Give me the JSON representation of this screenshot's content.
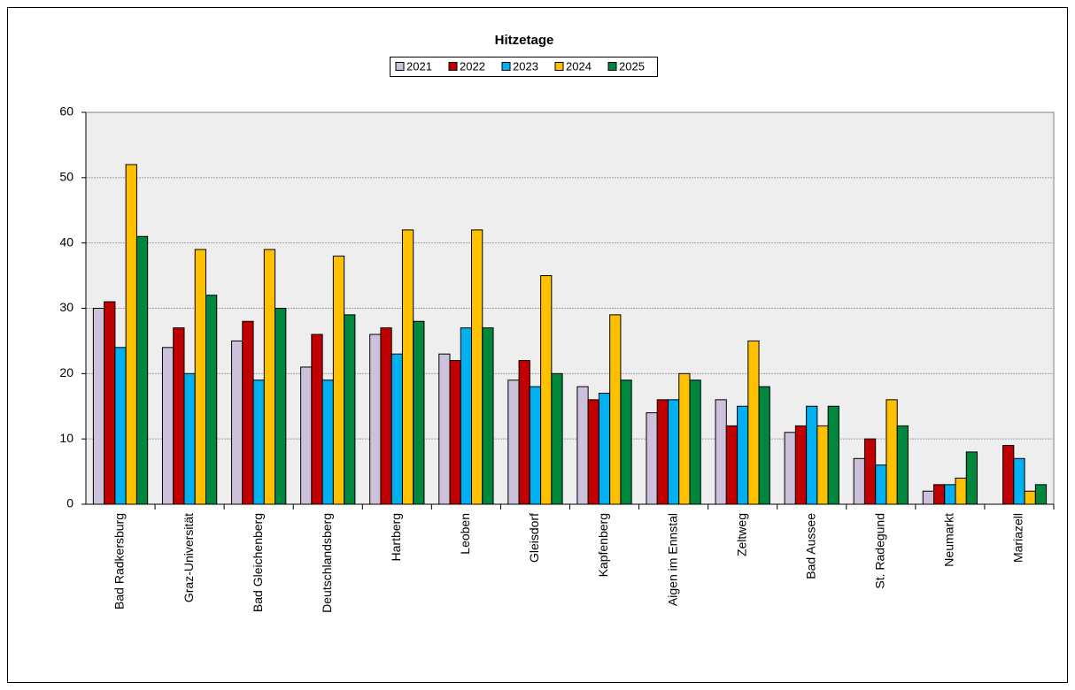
{
  "chart_data": {
    "type": "bar",
    "title": "Hitzetage",
    "categories": [
      "Bad Radkersburg",
      "Graz-Universität",
      "Bad Gleichenberg",
      "Deutschlandsberg",
      "Hartberg",
      "Leoben",
      "Gleisdorf",
      "Kapfenberg",
      "Aigen im Ennstal",
      "Zeltweg",
      "Bad Aussee",
      "St. Radegund",
      "Neumarkt",
      "Mariazell"
    ],
    "series": [
      {
        "name": "2021",
        "color": "#ccc0da",
        "values": [
          30,
          24,
          25,
          21,
          26,
          23,
          19,
          18,
          14,
          16,
          11,
          7,
          2,
          null
        ]
      },
      {
        "name": "2022",
        "color": "#c00000",
        "values": [
          31,
          27,
          28,
          26,
          27,
          22,
          22,
          16,
          16,
          12,
          12,
          10,
          3,
          9
        ]
      },
      {
        "name": "2023",
        "color": "#00b0f0",
        "values": [
          24,
          20,
          19,
          19,
          23,
          27,
          18,
          17,
          16,
          15,
          15,
          6,
          3,
          7
        ]
      },
      {
        "name": "2024",
        "color": "#ffc000",
        "values": [
          52,
          39,
          39,
          38,
          42,
          42,
          35,
          29,
          20,
          25,
          12,
          16,
          4,
          2
        ]
      },
      {
        "name": "2025",
        "color": "#00863d",
        "values": [
          41,
          32,
          30,
          29,
          28,
          27,
          20,
          19,
          19,
          18,
          15,
          12,
          8,
          3
        ]
      }
    ],
    "ylim": [
      0,
      60
    ],
    "yticks": [
      0,
      10,
      20,
      30,
      40,
      50,
      60
    ],
    "grid": true
  }
}
